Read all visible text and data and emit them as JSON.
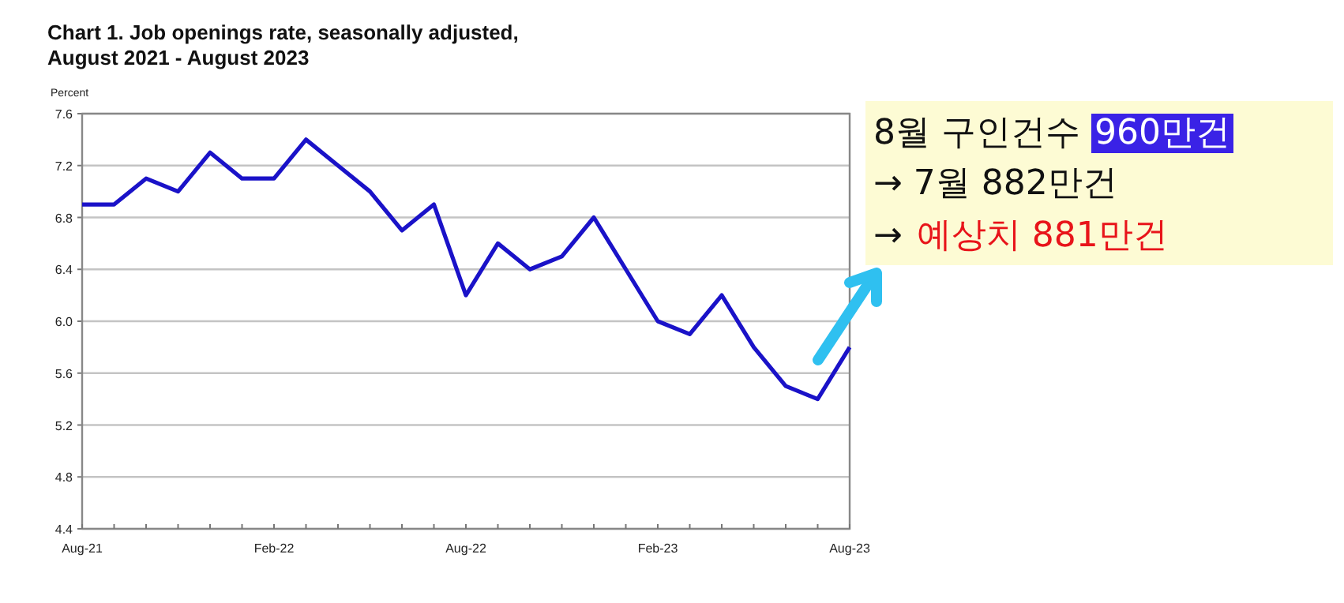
{
  "chart_data": {
    "type": "line",
    "title": "Chart 1. Job openings rate, seasonally adjusted,",
    "subtitle": "August 2021 - August 2023",
    "ylabel": "Percent",
    "categories": [
      "Aug-21",
      null,
      null,
      null,
      null,
      null,
      "Feb-22",
      null,
      null,
      null,
      null,
      null,
      "Aug-22",
      null,
      null,
      null,
      null,
      null,
      "Feb-23",
      null,
      null,
      null,
      null,
      null,
      "Aug-23"
    ],
    "series": [
      {
        "color": "#1a12c8",
        "values": [
          6.9,
          6.9,
          7.1,
          7.0,
          7.3,
          7.1,
          7.1,
          7.4,
          7.2,
          7.0,
          6.7,
          6.9,
          6.2,
          6.6,
          6.4,
          6.5,
          6.8,
          6.4,
          6.0,
          5.9,
          6.2,
          5.8,
          5.5,
          5.4,
          5.8
        ]
      }
    ],
    "ylim": [
      4.4,
      7.6
    ],
    "yticks": [
      4.4,
      4.8,
      5.2,
      5.6,
      {
        "value": 6.0,
        "label": "6.0"
      },
      6.4,
      6.8,
      7.2,
      7.6
    ],
    "grid": "y",
    "marker": "none",
    "line_style": "solid",
    "annotations": [
      "8월 구인건수",
      "960만건",
      "→ 7월 882만건",
      "→",
      "예상치 881만건"
    ]
  }
}
